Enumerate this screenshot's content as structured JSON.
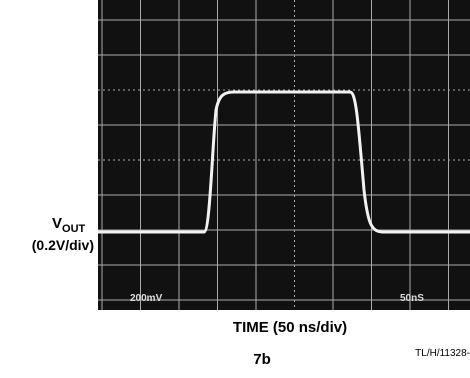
{
  "figure": {
    "y_label_main": "V",
    "y_label_sub": "OUT",
    "y_label_scale": "(0.2V/div)",
    "x_label": "TIME (50 ns/div)",
    "screen_left_label": "200mV",
    "screen_right_label": "50nS",
    "caption": "7b",
    "code": "TL/H/11328-"
  }
}
